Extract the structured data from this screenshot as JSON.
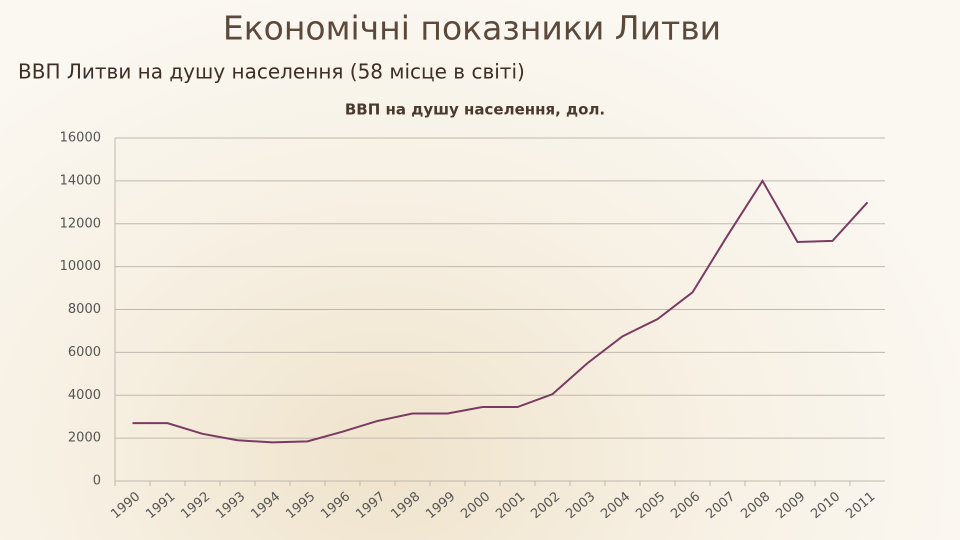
{
  "slide_title": "Економічні показники Литви",
  "slide_subtitle": "ВВП Литви на душу населення (58 місце в світі)",
  "chart_data": {
    "type": "line",
    "title": "ВВП на душу населення, дол.",
    "categories": [
      "1990",
      "1991",
      "1992",
      "1993",
      "1994",
      "1995",
      "1996",
      "1997",
      "1998",
      "1999",
      "2000",
      "2001",
      "2002",
      "2003",
      "2004",
      "2005",
      "2006",
      "2007",
      "2008",
      "2009",
      "2010",
      "2011"
    ],
    "series": [
      {
        "name": "ВВП на душу населення, дол.",
        "color": "#7a3b63",
        "values": [
          2700,
          2700,
          2200,
          1900,
          1800,
          1850,
          2300,
          2800,
          3150,
          3150,
          3450,
          3450,
          4050,
          5500,
          6750,
          7550,
          8800,
          11450,
          14000,
          11150,
          11200,
          13000
        ]
      }
    ],
    "ylim": [
      0,
      16000
    ],
    "yticks": [
      0,
      2000,
      4000,
      6000,
      8000,
      10000,
      12000,
      14000,
      16000
    ],
    "grid": true
  }
}
